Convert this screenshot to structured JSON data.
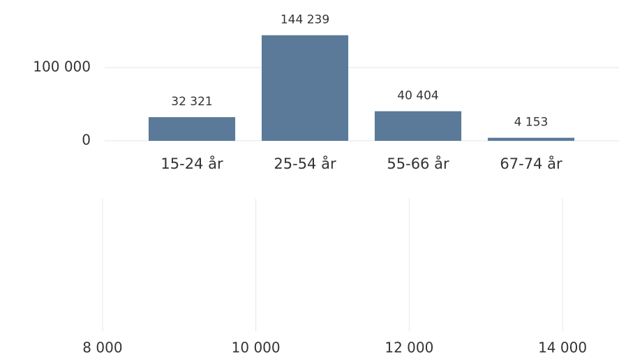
{
  "chart_data": [
    {
      "type": "bar",
      "categories": [
        "15-24 år",
        "25-54 år",
        "55-66 år",
        "67-74 år"
      ],
      "values": [
        32321,
        144239,
        40404,
        4153
      ],
      "value_labels": [
        "32 321",
        "144 239",
        "40 404",
        "4 153"
      ],
      "color": "#5b7a99",
      "ylim": [
        0,
        150000
      ],
      "yticks": [
        0,
        {
          "value": 100000,
          "label": "100 000"
        }
      ],
      "grid": true
    },
    {
      "type": "bar",
      "categories": [],
      "values": [],
      "xlim": [
        7500,
        14500
      ],
      "xticks": [
        {
          "value": 8000,
          "label": "8 000"
        },
        {
          "value": 10000,
          "label": "10 000"
        },
        {
          "value": 12000,
          "label": "12 000"
        },
        {
          "value": 14000,
          "label": "14 000"
        }
      ],
      "grid": true
    }
  ]
}
